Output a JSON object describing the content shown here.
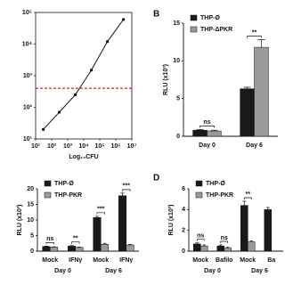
{
  "chart_data": [
    {
      "type": "line",
      "x_label": "Log₁₀CFU",
      "log_x": true,
      "log_y": true,
      "x": [
        30,
        300,
        3000,
        30000,
        300000,
        3000000
      ],
      "series": [
        {
          "color": "#111111",
          "values": [
            20,
            70,
            250,
            1500,
            12000,
            60000
          ]
        }
      ],
      "reference_line": 400,
      "reference_color": "#e02020",
      "xlim": [
        10,
        10000000
      ],
      "xticks": [
        {
          "value": 10,
          "label": "10¹"
        },
        {
          "value": 100,
          "label": "10²"
        },
        {
          "value": 1000,
          "label": "10³"
        },
        {
          "value": 10000,
          "label": "10⁴"
        },
        {
          "value": 100000,
          "label": "10⁵"
        },
        {
          "value": 1000000,
          "label": "10⁶"
        },
        {
          "value": 10000000,
          "label": "10⁷"
        }
      ],
      "ylim": [
        10,
        100000
      ],
      "yticks": [
        {
          "value": 10,
          "label": "10¹"
        },
        {
          "value": 100,
          "label": "10²"
        },
        {
          "value": 1000,
          "label": "10³"
        },
        {
          "value": 10000,
          "label": "10⁴"
        },
        {
          "value": 100000,
          "label": "10⁵"
        }
      ]
    },
    {
      "type": "bar",
      "letter": "B",
      "y_label": "RLU (x10³)",
      "categories": [
        "Day 0",
        "Day 6"
      ],
      "series": [
        {
          "name": "THP-Ø",
          "color": "#1a1a1a",
          "values": [
            0.8,
            6.3
          ],
          "errors": [
            0.1,
            0.2
          ]
        },
        {
          "name": "THP-ΔPKR",
          "color": "#9a9a9a",
          "values": [
            0.7,
            11.8
          ],
          "errors": [
            0.1,
            1.0
          ]
        }
      ],
      "annotations": [
        "ns",
        "**"
      ],
      "ylim": [
        0,
        15
      ],
      "yticks": [
        0,
        5,
        10,
        15
      ]
    },
    {
      "type": "bar",
      "y_label": "RLU (x10³)",
      "categories": [
        "Mock",
        "IFNγ",
        "Mock",
        "IFNγ"
      ],
      "groups": [
        "Day 0",
        "Day 6"
      ],
      "series": [
        {
          "name": "THP-Ø",
          "color": "#1a1a1a",
          "values": [
            1.5,
            1.6,
            10.8,
            17.8
          ],
          "errors": [
            0.1,
            0.2,
            0.4,
            0.8
          ]
        },
        {
          "name": "THP-PKR",
          "color": "#9a9a9a",
          "values": [
            1.3,
            1.2,
            2.2,
            2.0
          ],
          "errors": [
            0.1,
            0.1,
            0.3,
            0.2
          ]
        }
      ],
      "annotations": [
        "ns",
        "**",
        "***",
        "***"
      ],
      "ylim": [
        0,
        20
      ],
      "yticks": [
        0,
        5,
        10,
        15,
        20
      ]
    },
    {
      "type": "bar",
      "letter": "D",
      "y_label": "RLU (x10³)",
      "categories": [
        "Mock",
        "Bafilo",
        "Mock",
        "Ba"
      ],
      "groups": [
        "Day 0",
        "Day 6"
      ],
      "series": [
        {
          "name": "THP-Ø",
          "color": "#1a1a1a",
          "values": [
            0.7,
            0.5,
            4.4,
            4.0
          ],
          "errors": [
            0.1,
            0.1,
            0.4,
            0.2
          ]
        },
        {
          "name": "THP-PKR",
          "color": "#9a9a9a",
          "values": [
            0.5,
            0.3,
            0.9,
            null
          ],
          "errors": [
            0.1,
            0.1,
            0.1,
            null
          ]
        }
      ],
      "annotations": [
        "ns",
        "ns",
        "**",
        null
      ],
      "ylim": [
        0,
        6
      ],
      "yticks": [
        0,
        2,
        4,
        6
      ]
    }
  ]
}
